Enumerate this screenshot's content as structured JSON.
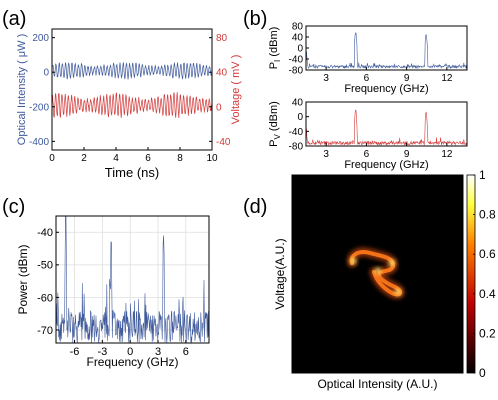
{
  "colors": {
    "blue": "#3f5a9c",
    "red": "#d23a3a",
    "axis": "#000000",
    "grid": "#dddddd",
    "heat_bg": "#000000"
  },
  "panels": {
    "a": "(a)",
    "b": "(b)",
    "c": "(c)",
    "d": "(d)"
  },
  "chart_data": [
    {
      "id": "a",
      "type": "line",
      "xlabel": "Time (ns)",
      "ylabel_left": "Optical Intensity ( μW )",
      "ylabel_right": "Voltage ( mV )",
      "xlim": [
        0,
        10
      ],
      "x_ticks": [
        "0",
        "2",
        "4",
        "6",
        "8",
        "10"
      ],
      "ylim_left": [
        -450,
        250
      ],
      "y_ticks_left": [
        [
          "200",
          200
        ],
        [
          "0",
          0
        ],
        [
          "-200",
          -200
        ],
        [
          "-400",
          -400
        ]
      ],
      "ylim_right": [
        -50,
        90
      ],
      "y_ticks_right": [
        [
          "80",
          80
        ],
        [
          "40",
          40
        ],
        [
          "0",
          0
        ],
        [
          "-40",
          -40
        ]
      ],
      "series": [
        {
          "axis": "left",
          "color": "blue",
          "center": 10,
          "amplitude": 45,
          "period_ns": 0.2,
          "x_range": [
            0,
            10
          ]
        },
        {
          "axis": "left",
          "color": "red",
          "center": -190,
          "amplitude": 65,
          "period_ns": 0.2,
          "x_range": [
            0,
            10
          ]
        }
      ]
    },
    {
      "id": "b_top",
      "type": "line",
      "xlabel": "Frequency (GHz)",
      "ylabel": "P",
      "ylabel_sub": "I",
      "ylabel_unit": " (dBm)",
      "xlim": [
        1.5,
        13.5
      ],
      "x_ticks": [
        "3",
        "6",
        "9",
        "12"
      ],
      "ylim": [
        -80,
        80
      ],
      "y_ticks": [
        [
          "80",
          80
        ],
        [
          "40",
          40
        ],
        [
          "0",
          0
        ],
        [
          "-40",
          -40
        ],
        [
          "-80",
          -80
        ]
      ],
      "color": "blue",
      "noise_floor": -68,
      "peaks": [
        [
          5.2,
          55
        ],
        [
          10.45,
          48
        ],
        [
          1.5,
          -10
        ]
      ]
    },
    {
      "id": "b_bottom",
      "type": "line",
      "xlabel": "Frequency (GHz)",
      "ylabel": "P",
      "ylabel_sub": "V",
      "ylabel_unit": " (dBm)",
      "xlim": [
        1.5,
        13.5
      ],
      "x_ticks": [
        "3",
        "6",
        "9",
        "12"
      ],
      "ylim": [
        -80,
        40
      ],
      "y_ticks": [
        [
          "40",
          40
        ],
        [
          "0",
          0
        ],
        [
          "-40",
          -40
        ],
        [
          "-80",
          -80
        ]
      ],
      "color": "red",
      "noise_floor": -72,
      "peaks": [
        [
          5.2,
          18
        ],
        [
          10.45,
          12
        ],
        [
          1.5,
          -30
        ]
      ]
    },
    {
      "id": "c",
      "type": "line",
      "xlabel": "Frequency (GHz)",
      "ylabel": "Power (dBm)",
      "xlim": [
        -8,
        8.5
      ],
      "x_ticks": [
        [
          "-6",
          -6
        ],
        [
          "-3",
          -3
        ],
        [
          "0",
          0
        ],
        [
          "3",
          3
        ],
        [
          "6",
          6
        ]
      ],
      "ylim": [
        -74,
        -35
      ],
      "y_ticks": [
        [
          "-40",
          -40
        ],
        [
          "-50",
          -50
        ],
        [
          "-60",
          -60
        ],
        [
          "-70",
          -70
        ]
      ],
      "color": "blue",
      "grid": true,
      "noise_floor": -69,
      "peaks": [
        [
          -6.95,
          -35
        ],
        [
          -2.05,
          -43
        ],
        [
          0.05,
          -65
        ],
        [
          3.6,
          -41
        ]
      ]
    },
    {
      "id": "d",
      "type": "heatmap",
      "xlabel": "Optical Intensity (A.U.)",
      "ylabel": "Voltage(A.U.)",
      "colorbar_range": [
        0,
        1
      ],
      "colorbar_ticks": [
        [
          "1",
          1
        ],
        [
          "0.8",
          0.8
        ],
        [
          "0.6",
          0.6
        ],
        [
          "0.4",
          0.4
        ],
        [
          "0.2",
          0.2
        ],
        [
          "0",
          0
        ]
      ],
      "colormap": "hot",
      "attractor_color": "#ff5a12"
    }
  ]
}
